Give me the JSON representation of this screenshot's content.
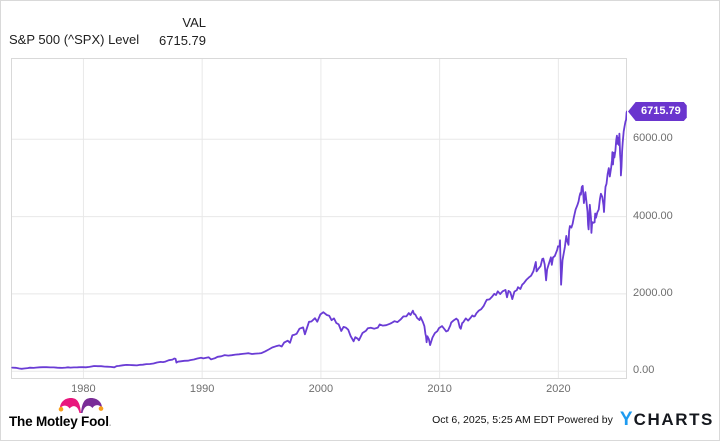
{
  "header": {
    "title": "S&P 500 (^SPX) Level",
    "col_label": "VAL",
    "col_value": "6715.79"
  },
  "chart": {
    "line_color": "#6a3cd5",
    "grid_color": "#e8e8e8",
    "border_color": "#d9d9d9",
    "tick_color": "#6e6e6e",
    "badge": {
      "text": "6715.79",
      "bg": "#6a35ce",
      "fg": "#ffffff"
    }
  },
  "chart_data": {
    "type": "line",
    "title": "S&P 500 (^SPX) Level",
    "xlabel": "",
    "ylabel": "",
    "grid": true,
    "legend_position": "none",
    "x_range": [
      1973.9,
      2025.78
    ],
    "y_range": [
      -200,
      8100
    ],
    "x_ticks": [
      {
        "v": 1980,
        "label": "1980"
      },
      {
        "v": 1990,
        "label": "1990"
      },
      {
        "v": 2000,
        "label": "2000"
      },
      {
        "v": 2010,
        "label": "2010"
      },
      {
        "v": 2020,
        "label": "2020"
      }
    ],
    "y_ticks": [
      {
        "v": 0,
        "label": "0.00"
      },
      {
        "v": 2000,
        "label": "2000.00"
      },
      {
        "v": 4000,
        "label": "4000.00"
      },
      {
        "v": 6000,
        "label": "6000.00"
      }
    ],
    "last_value": 6715.79,
    "series": [
      {
        "name": "S&P 500 (^SPX) Level",
        "points": [
          [
            1974.0,
            96
          ],
          [
            1974.3,
            90
          ],
          [
            1974.6,
            72
          ],
          [
            1974.8,
            63
          ],
          [
            1975.0,
            72
          ],
          [
            1975.3,
            83
          ],
          [
            1975.5,
            92
          ],
          [
            1975.8,
            88
          ],
          [
            1976.0,
            96
          ],
          [
            1976.3,
            102
          ],
          [
            1976.6,
            104
          ],
          [
            1976.9,
            105
          ],
          [
            1977.2,
            99
          ],
          [
            1977.5,
            99
          ],
          [
            1977.8,
            93
          ],
          [
            1978.0,
            89
          ],
          [
            1978.2,
            87
          ],
          [
            1978.5,
            96
          ],
          [
            1978.7,
            103
          ],
          [
            1978.9,
            94
          ],
          [
            1979.2,
            100
          ],
          [
            1979.5,
            102
          ],
          [
            1979.8,
            108
          ],
          [
            1980.0,
            106
          ],
          [
            1980.2,
            102
          ],
          [
            1980.5,
            114
          ],
          [
            1980.8,
            130
          ],
          [
            1980.95,
            136
          ],
          [
            1981.2,
            130
          ],
          [
            1981.5,
            131
          ],
          [
            1981.8,
            120
          ],
          [
            1982.0,
            117
          ],
          [
            1982.3,
            112
          ],
          [
            1982.6,
            102
          ],
          [
            1982.8,
            133
          ],
          [
            1983.0,
            140
          ],
          [
            1983.3,
            153
          ],
          [
            1983.6,
            165
          ],
          [
            1983.9,
            163
          ],
          [
            1984.2,
            157
          ],
          [
            1984.5,
            151
          ],
          [
            1984.8,
            166
          ],
          [
            1985.0,
            171
          ],
          [
            1985.3,
            184
          ],
          [
            1985.6,
            188
          ],
          [
            1985.9,
            202
          ],
          [
            1986.2,
            226
          ],
          [
            1986.5,
            241
          ],
          [
            1986.7,
            236
          ],
          [
            1986.9,
            249
          ],
          [
            1987.2,
            285
          ],
          [
            1987.5,
            302
          ],
          [
            1987.65,
            330
          ],
          [
            1987.76,
            320
          ],
          [
            1987.83,
            225
          ],
          [
            1987.95,
            247
          ],
          [
            1988.2,
            258
          ],
          [
            1988.5,
            270
          ],
          [
            1988.8,
            274
          ],
          [
            1989.0,
            288
          ],
          [
            1989.3,
            305
          ],
          [
            1989.6,
            330
          ],
          [
            1989.9,
            350
          ],
          [
            1990.1,
            332
          ],
          [
            1990.4,
            354
          ],
          [
            1990.55,
            360
          ],
          [
            1990.75,
            306
          ],
          [
            1990.9,
            322
          ],
          [
            1991.1,
            340
          ],
          [
            1991.3,
            375
          ],
          [
            1991.6,
            387
          ],
          [
            1991.9,
            417
          ],
          [
            1992.2,
            404
          ],
          [
            1992.5,
            415
          ],
          [
            1992.8,
            431
          ],
          [
            1993.1,
            439
          ],
          [
            1993.4,
            448
          ],
          [
            1993.7,
            459
          ],
          [
            1993.9,
            467
          ],
          [
            1994.2,
            447
          ],
          [
            1994.5,
            456
          ],
          [
            1994.8,
            461
          ],
          [
            1995.0,
            470
          ],
          [
            1995.3,
            514
          ],
          [
            1995.6,
            562
          ],
          [
            1995.9,
            615
          ],
          [
            1996.2,
            645
          ],
          [
            1996.5,
            670
          ],
          [
            1996.7,
            640
          ],
          [
            1996.9,
            740
          ],
          [
            1997.2,
            790
          ],
          [
            1997.4,
            737
          ],
          [
            1997.6,
            933
          ],
          [
            1997.8,
            947
          ],
          [
            1997.95,
            970
          ],
          [
            1998.2,
            1100
          ],
          [
            1998.5,
            1133
          ],
          [
            1998.65,
            957
          ],
          [
            1998.8,
            1098
          ],
          [
            1999.0,
            1279
          ],
          [
            1999.2,
            1286
          ],
          [
            1999.5,
            1372
          ],
          [
            1999.7,
            1282
          ],
          [
            1999.95,
            1469
          ],
          [
            2000.2,
            1527
          ],
          [
            2000.5,
            1454
          ],
          [
            2000.7,
            1436
          ],
          [
            2000.9,
            1320
          ],
          [
            2001.1,
            1366
          ],
          [
            2001.3,
            1249
          ],
          [
            2001.5,
            1211
          ],
          [
            2001.72,
            1040
          ],
          [
            2001.9,
            1148
          ],
          [
            2002.1,
            1130
          ],
          [
            2002.3,
            1076
          ],
          [
            2002.5,
            911
          ],
          [
            2002.75,
            776
          ],
          [
            2002.9,
            880
          ],
          [
            2003.1,
            841
          ],
          [
            2003.2,
            800
          ],
          [
            2003.5,
            990
          ],
          [
            2003.8,
            1050
          ],
          [
            2003.95,
            1112
          ],
          [
            2004.2,
            1126
          ],
          [
            2004.5,
            1101
          ],
          [
            2004.8,
            1130
          ],
          [
            2004.95,
            1212
          ],
          [
            2005.2,
            1181
          ],
          [
            2005.5,
            1191
          ],
          [
            2005.8,
            1228
          ],
          [
            2005.95,
            1248
          ],
          [
            2006.2,
            1295
          ],
          [
            2006.45,
            1270
          ],
          [
            2006.7,
            1335
          ],
          [
            2006.95,
            1418
          ],
          [
            2007.2,
            1421
          ],
          [
            2007.4,
            1503
          ],
          [
            2007.55,
            1455
          ],
          [
            2007.75,
            1565
          ],
          [
            2007.85,
            1481
          ],
          [
            2007.95,
            1468
          ],
          [
            2008.1,
            1378
          ],
          [
            2008.3,
            1323
          ],
          [
            2008.4,
            1400
          ],
          [
            2008.6,
            1267
          ],
          [
            2008.72,
            1166
          ],
          [
            2008.8,
            968
          ],
          [
            2008.85,
            903
          ],
          [
            2008.9,
            752
          ],
          [
            2008.97,
            903
          ],
          [
            2009.1,
            826
          ],
          [
            2009.2,
            676
          ],
          [
            2009.4,
            872
          ],
          [
            2009.6,
            987
          ],
          [
            2009.8,
            1036
          ],
          [
            2009.95,
            1115
          ],
          [
            2010.2,
            1169
          ],
          [
            2010.4,
            1089
          ],
          [
            2010.55,
            1031
          ],
          [
            2010.7,
            1049
          ],
          [
            2010.9,
            1183
          ],
          [
            2010.97,
            1258
          ],
          [
            2011.2,
            1321
          ],
          [
            2011.4,
            1363
          ],
          [
            2011.55,
            1320
          ],
          [
            2011.7,
            1131
          ],
          [
            2011.78,
            1099
          ],
          [
            2011.9,
            1247
          ],
          [
            2011.97,
            1258
          ],
          [
            2012.2,
            1366
          ],
          [
            2012.4,
            1310
          ],
          [
            2012.6,
            1379
          ],
          [
            2012.75,
            1441
          ],
          [
            2012.88,
            1416
          ],
          [
            2012.97,
            1426
          ],
          [
            2013.1,
            1498
          ],
          [
            2013.3,
            1569
          ],
          [
            2013.5,
            1606
          ],
          [
            2013.7,
            1686
          ],
          [
            2013.9,
            1806
          ],
          [
            2013.97,
            1848
          ],
          [
            2014.2,
            1859
          ],
          [
            2014.4,
            1924
          ],
          [
            2014.6,
            2003
          ],
          [
            2014.75,
            1972
          ],
          [
            2014.9,
            2068
          ],
          [
            2015.1,
            1995
          ],
          [
            2015.3,
            2068
          ],
          [
            2015.55,
            2103
          ],
          [
            2015.67,
            1913
          ],
          [
            2015.8,
            2079
          ],
          [
            2015.95,
            2044
          ],
          [
            2016.05,
            1940
          ],
          [
            2016.12,
            1866
          ],
          [
            2016.3,
            2060
          ],
          [
            2016.5,
            2099
          ],
          [
            2016.6,
            2174
          ],
          [
            2016.8,
            2126
          ],
          [
            2016.95,
            2239
          ],
          [
            2017.1,
            2279
          ],
          [
            2017.3,
            2363
          ],
          [
            2017.5,
            2423
          ],
          [
            2017.7,
            2472
          ],
          [
            2017.9,
            2585
          ],
          [
            2017.97,
            2674
          ],
          [
            2018.1,
            2824
          ],
          [
            2018.17,
            2582
          ],
          [
            2018.3,
            2641
          ],
          [
            2018.5,
            2718
          ],
          [
            2018.65,
            2902
          ],
          [
            2018.73,
            2914
          ],
          [
            2018.85,
            2760
          ],
          [
            2018.97,
            2351
          ],
          [
            2019.05,
            2632
          ],
          [
            2019.2,
            2784
          ],
          [
            2019.37,
            2946
          ],
          [
            2019.45,
            2752
          ],
          [
            2019.55,
            2942
          ],
          [
            2019.7,
            2980
          ],
          [
            2019.9,
            3141
          ],
          [
            2019.97,
            3231
          ],
          [
            2020.1,
            3226
          ],
          [
            2020.14,
            3386
          ],
          [
            2020.23,
            2237
          ],
          [
            2020.35,
            2870
          ],
          [
            2020.45,
            3044
          ],
          [
            2020.55,
            3218
          ],
          [
            2020.67,
            3500
          ],
          [
            2020.75,
            3363
          ],
          [
            2020.85,
            3270
          ],
          [
            2020.9,
            3622
          ],
          [
            2020.97,
            3756
          ],
          [
            2021.1,
            3714
          ],
          [
            2021.2,
            3811
          ],
          [
            2021.3,
            3973
          ],
          [
            2021.45,
            4181
          ],
          [
            2021.6,
            4297
          ],
          [
            2021.7,
            4395
          ],
          [
            2021.78,
            4523
          ],
          [
            2021.85,
            4605
          ],
          [
            2021.9,
            4567
          ],
          [
            2021.97,
            4766
          ],
          [
            2022.05,
            4796
          ],
          [
            2022.15,
            4349
          ],
          [
            2022.28,
            4631
          ],
          [
            2022.45,
            4132
          ],
          [
            2022.5,
            3785
          ],
          [
            2022.55,
            3667
          ],
          [
            2022.65,
            4305
          ],
          [
            2022.75,
            3955
          ],
          [
            2022.78,
            3577
          ],
          [
            2022.85,
            3856
          ],
          [
            2022.95,
            3840
          ],
          [
            2023.05,
            3853
          ],
          [
            2023.1,
            4080
          ],
          [
            2023.17,
            3970
          ],
          [
            2023.28,
            4109
          ],
          [
            2023.4,
            4180
          ],
          [
            2023.5,
            4450
          ],
          [
            2023.58,
            4589
          ],
          [
            2023.7,
            4508
          ],
          [
            2023.8,
            4288
          ],
          [
            2023.84,
            4117
          ],
          [
            2023.92,
            4550
          ],
          [
            2023.97,
            4770
          ],
          [
            2024.05,
            4846
          ],
          [
            2024.15,
            5096
          ],
          [
            2024.25,
            5254
          ],
          [
            2024.33,
            5036
          ],
          [
            2024.45,
            5278
          ],
          [
            2024.52,
            5460
          ],
          [
            2024.55,
            5667
          ],
          [
            2024.6,
            5346
          ],
          [
            2024.67,
            5648
          ],
          [
            2024.72,
            5528
          ],
          [
            2024.8,
            5705
          ],
          [
            2024.87,
            5970
          ],
          [
            2024.93,
            6090
          ],
          [
            2024.97,
            5882
          ],
          [
            2025.05,
            6041
          ],
          [
            2025.1,
            5850
          ],
          [
            2025.14,
            6144
          ],
          [
            2025.2,
            5612
          ],
          [
            2025.25,
            5397
          ],
          [
            2025.27,
            5062
          ],
          [
            2025.32,
            5288
          ],
          [
            2025.37,
            5687
          ],
          [
            2025.42,
            5912
          ],
          [
            2025.5,
            6205
          ],
          [
            2025.58,
            6339
          ],
          [
            2025.65,
            6460
          ],
          [
            2025.7,
            6502
          ],
          [
            2025.75,
            6688
          ],
          [
            2025.77,
            6715.79
          ]
        ]
      }
    ]
  },
  "footer": {
    "motley_fool_text": "The Motley Fool",
    "reg_mark": ".",
    "timestamp": "Oct 6, 2025, 5:25 AM EDT Powered by",
    "ycharts_y": "Y",
    "ycharts_rest": "CHARTS",
    "ycharts_blue": "#1e9bf0"
  }
}
